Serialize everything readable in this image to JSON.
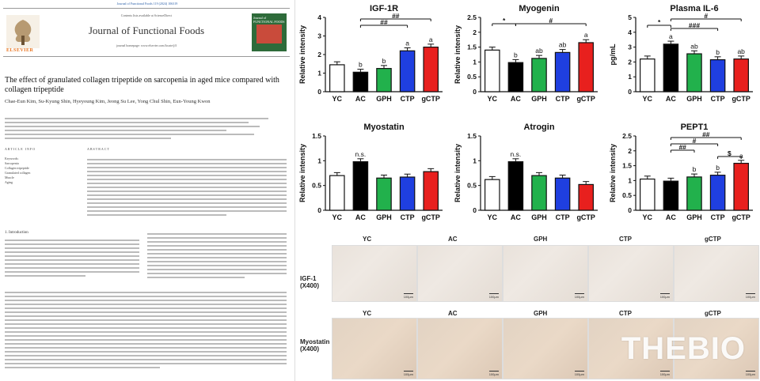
{
  "paper": {
    "journal_line": "Journal of Functional Foods 119 (2024) 106319",
    "contents": "Contents lists available at ScienceDirect",
    "journal_title": "Journal of Functional Foods",
    "homepage": "journal homepage: www.elsevier.com/locate/jff",
    "publisher": "ELSEVIER",
    "cover_label": "Journal of FUNCTIONAL FOODS",
    "title": "The effect of granulated collagen tripeptide on sarcopenia in aged mice compared with collagen tripeptide",
    "authors": "Chae-Eun Kim, Su-Kyung Shin, Hyeyoung Kim, Jeong Su Lee, Yong Chul Shin, Eun-Young Kwon",
    "article_info": "ARTICLE INFO",
    "abstract": "ABSTRACT",
    "keywords": [
      "Keywords:",
      "Sarcopenia",
      "Collagen tripeptide",
      "Granulated collagen",
      "Muscle",
      "Aging"
    ],
    "intro_heading": "1. Introduction"
  },
  "colors": {
    "YC": "#ffffff",
    "AC": "#000000",
    "GPH": "#22b14c",
    "CTP": "#1f3fe0",
    "gCTP": "#e8201e"
  },
  "charts": {
    "igf1r": {
      "title": "IGF-1R",
      "ylabel": "Relative intensity",
      "sig1": "##",
      "sig2": "##",
      "letters": [
        "",
        "b",
        "b",
        "a",
        "a"
      ]
    },
    "myogenin": {
      "title": "Myogenin",
      "ylabel": "Relative intensity",
      "sig1": "*",
      "sig2": "#",
      "letters": [
        "",
        "b",
        "ab",
        "ab",
        "a"
      ]
    },
    "il6": {
      "title": "Plasma IL-6",
      "ylabel": "pg/mL",
      "sig1": "*",
      "sig2": "###",
      "sig3": "#",
      "letters": [
        "",
        "a",
        "ab",
        "b",
        "ab"
      ]
    },
    "myostatin": {
      "title": "Myostatin",
      "ylabel": "Relative intensity",
      "letters": [
        "",
        "n.s.",
        "",
        "",
        ""
      ]
    },
    "atrogin": {
      "title": "Atrogin",
      "ylabel": "Relative intensity",
      "letters": [
        "",
        "n.s.",
        "",
        "",
        ""
      ]
    },
    "pept1": {
      "title": "PEPT1",
      "ylabel": "Relative intensity",
      "sig1": "##",
      "sig2": "#",
      "sig3": "##",
      "sig4": "$",
      "letters": [
        "",
        "",
        "b",
        "b",
        "a"
      ]
    }
  },
  "chart_data": [
    {
      "type": "bar",
      "title": "IGF-1R",
      "ylabel": "Relative intensity",
      "categories": [
        "YC",
        "AC",
        "GPH",
        "CTP",
        "gCTP"
      ],
      "values": [
        1.45,
        1.05,
        1.25,
        2.2,
        2.4
      ],
      "ylim": [
        0,
        4
      ],
      "yticks": [
        0,
        1,
        2,
        3,
        4
      ]
    },
    {
      "type": "bar",
      "title": "Myogenin",
      "ylabel": "Relative intensity",
      "categories": [
        "YC",
        "AC",
        "GPH",
        "CTP",
        "gCTP"
      ],
      "values": [
        1.4,
        0.98,
        1.12,
        1.32,
        1.65
      ],
      "ylim": [
        0,
        2.5
      ],
      "yticks": [
        0,
        0.5,
        1.0,
        1.5,
        2.0,
        2.5
      ]
    },
    {
      "type": "bar",
      "title": "Plasma IL-6",
      "ylabel": "pg/mL",
      "categories": [
        "YC",
        "AC",
        "GPH",
        "CTP",
        "gCTP"
      ],
      "values": [
        2.2,
        3.2,
        2.55,
        2.15,
        2.2
      ],
      "ylim": [
        0,
        5
      ],
      "yticks": [
        0,
        1,
        2,
        3,
        4,
        5
      ]
    },
    {
      "type": "bar",
      "title": "Myostatin",
      "ylabel": "Relative intensity",
      "categories": [
        "YC",
        "AC",
        "GPH",
        "CTP",
        "gCTP"
      ],
      "values": [
        0.7,
        0.98,
        0.65,
        0.67,
        0.78
      ],
      "ylim": [
        0,
        1.5
      ],
      "yticks": [
        0,
        0.5,
        1.0,
        1.5
      ]
    },
    {
      "type": "bar",
      "title": "Atrogin",
      "ylabel": "Relative intensity",
      "categories": [
        "YC",
        "AC",
        "GPH",
        "CTP",
        "gCTP"
      ],
      "values": [
        0.62,
        0.98,
        0.7,
        0.65,
        0.52
      ],
      "ylim": [
        0,
        1.5
      ],
      "yticks": [
        0,
        0.5,
        1.0,
        1.5
      ]
    },
    {
      "type": "bar",
      "title": "PEPT1",
      "ylabel": "Relative intensity",
      "categories": [
        "YC",
        "AC",
        "GPH",
        "CTP",
        "gCTP"
      ],
      "values": [
        1.05,
        0.98,
        1.12,
        1.18,
        1.58
      ],
      "ylim": [
        0,
        2.5
      ],
      "yticks": [
        0,
        0.5,
        1.0,
        1.5,
        2.0,
        2.5
      ]
    }
  ],
  "micrographs": {
    "columns": [
      "YC",
      "AC",
      "GPH",
      "CTP",
      "gCTP"
    ],
    "rows": [
      "IGF-1\n(X400)",
      "Myostatin\n(X400)"
    ],
    "scale": "100μm"
  },
  "watermark": "THEBIO"
}
